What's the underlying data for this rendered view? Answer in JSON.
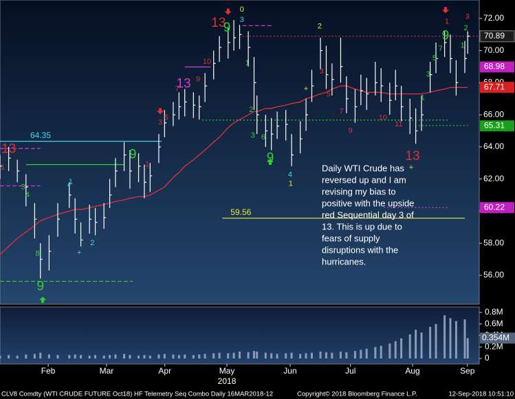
{
  "chart_data": {
    "type": "ohlc",
    "xlim": [
      0,
      166
    ],
    "xticks": [
      {
        "value": 16.7,
        "label": "Feb"
      },
      {
        "value": 36.9,
        "label": "Mar"
      },
      {
        "value": 57.1,
        "label": "Apr"
      },
      {
        "value": 78.6,
        "label": "May"
      },
      {
        "value": 100.5,
        "label": "Jun"
      },
      {
        "value": 121.4,
        "label": "Jul"
      },
      {
        "value": 142.9,
        "label": "Aug"
      },
      {
        "value": 161.9,
        "label": "Sep"
      }
    ],
    "year_label": "2018",
    "ylim": [
      54.2,
      73.15
    ],
    "yticks": [
      {
        "value": 56,
        "label": "56.00"
      },
      {
        "value": 58,
        "label": "58.00"
      },
      {
        "value": 60,
        "label": "60.00"
      },
      {
        "value": 62,
        "label": "62.00"
      },
      {
        "value": 64,
        "label": "64.00"
      },
      {
        "value": 66,
        "label": "66.00"
      },
      {
        "value": 68,
        "label": "68.00"
      },
      {
        "value": 70,
        "label": "70.00"
      },
      {
        "value": 72,
        "label": "72.00"
      }
    ],
    "bar_color": "#ffffff",
    "ma_color": "#e0303c",
    "x": [
      0,
      3,
      6,
      9,
      12,
      14,
      17,
      20,
      24,
      26,
      28,
      31,
      33,
      36,
      38,
      40,
      43,
      45,
      48,
      50,
      52,
      55,
      57,
      60,
      62,
      64,
      67,
      69,
      71,
      74,
      76,
      79,
      81,
      83,
      86,
      88,
      89,
      92,
      94,
      96,
      99,
      101,
      104,
      106,
      108,
      111,
      113,
      115,
      118,
      120,
      123,
      125,
      127,
      130,
      132,
      135,
      137,
      139,
      142,
      144,
      146,
      149,
      151,
      154,
      156,
      158,
      161,
      162
    ],
    "high": [
      63.5,
      64.0,
      63.2,
      62.3,
      60.5,
      58.0,
      58.5,
      60.5,
      61.8,
      60.8,
      59.3,
      60.4,
      60.2,
      60.5,
      62.0,
      63.3,
      64.3,
      63.8,
      63.6,
      62.9,
      63.0,
      64.8,
      66.3,
      66.8,
      67.4,
      67.6,
      67.4,
      67.2,
      68.6,
      70.0,
      70.9,
      71.4,
      71.9,
      71.6,
      71.2,
      69.6,
      67.2,
      66.0,
      65.8,
      66.2,
      66.3,
      64.8,
      65.6,
      67.0,
      68.8,
      70.8,
      70.3,
      69.2,
      70.8,
      68.4,
      67.6,
      68.5,
      68.3,
      69.3,
      68.9,
      68.0,
      68.8,
      67.8,
      67.0,
      66.4,
      67.2,
      69.3,
      70.5,
      71.2,
      71.0,
      69.4,
      70.6,
      71.2
    ],
    "low": [
      62.0,
      62.5,
      61.8,
      60.3,
      58.3,
      55.8,
      56.3,
      58.4,
      60.2,
      58.6,
      57.8,
      58.6,
      58.5,
      58.9,
      60.2,
      61.5,
      62.5,
      61.4,
      61.8,
      60.8,
      61.2,
      63.0,
      64.6,
      65.3,
      65.7,
      65.9,
      65.8,
      65.7,
      66.8,
      68.2,
      69.3,
      69.5,
      70.0,
      70.1,
      69.0,
      66.3,
      64.8,
      64.0,
      63.8,
      64.5,
      64.4,
      62.8,
      63.6,
      65.0,
      66.8,
      68.8,
      67.6,
      67.2,
      68.0,
      66.1,
      65.5,
      66.6,
      66.3,
      67.2,
      66.8,
      66.0,
      66.9,
      65.6,
      64.8,
      64.2,
      65.0,
      67.4,
      68.6,
      69.6,
      68.6,
      67.2,
      68.6,
      69.8
    ],
    "close": [
      62.8,
      63.3,
      62.5,
      61.5,
      59.5,
      57.0,
      57.5,
      59.5,
      61.0,
      59.5,
      58.2,
      59.5,
      59.3,
      59.6,
      61.0,
      62.5,
      63.5,
      62.5,
      62.8,
      61.8,
      62.2,
      64.0,
      65.5,
      66.0,
      66.5,
      66.8,
      66.6,
      66.5,
      67.8,
      69.2,
      70.2,
      70.5,
      70.8,
      71.0,
      70.2,
      68.0,
      66.0,
      65.0,
      64.8,
      65.3,
      65.4,
      63.5,
      64.5,
      66.0,
      67.8,
      70.0,
      68.5,
      68.2,
      69.0,
      67.0,
      66.5,
      67.5,
      67.3,
      68.0,
      67.8,
      66.9,
      67.8,
      66.5,
      65.8,
      65.0,
      66.0,
      68.5,
      69.5,
      70.5,
      69.5,
      68.0,
      69.5,
      70.9
    ],
    "ma": [
      57.3,
      57.8,
      58.3,
      58.7,
      59.1,
      59.4,
      59.6,
      59.8,
      60.0,
      60.1,
      60.1,
      60.2,
      60.3,
      60.4,
      60.5,
      60.6,
      60.7,
      60.8,
      60.9,
      60.9,
      61.0,
      61.3,
      61.5,
      62.1,
      62.4,
      62.8,
      63.2,
      63.5,
      63.8,
      64.3,
      64.6,
      65.2,
      65.5,
      65.7,
      66.0,
      66.2,
      66.2,
      66.4,
      66.4,
      66.5,
      66.6,
      66.7,
      66.8,
      67.0,
      67.1,
      67.3,
      67.4,
      67.6,
      67.8,
      67.8,
      67.6,
      67.5,
      67.4,
      67.4,
      67.4,
      67.3,
      67.3,
      67.3,
      67.3,
      67.3,
      67.3,
      67.4,
      67.5,
      67.6,
      67.7,
      67.7,
      67.7,
      67.71
    ],
    "volume": [
      0.05,
      0.06,
      0.05,
      0.07,
      0.08,
      0.1,
      0.07,
      0.06,
      0.06,
      0.07,
      0.06,
      0.05,
      0.06,
      0.05,
      0.06,
      0.07,
      0.08,
      0.06,
      0.05,
      0.06,
      0.05,
      0.07,
      0.08,
      0.07,
      0.06,
      0.07,
      0.06,
      0.07,
      0.08,
      0.09,
      0.1,
      0.09,
      0.1,
      0.12,
      0.11,
      0.13,
      0.12,
      0.1,
      0.09,
      0.08,
      0.09,
      0.1,
      0.08,
      0.09,
      0.1,
      0.12,
      0.11,
      0.1,
      0.12,
      0.11,
      0.13,
      0.15,
      0.17,
      0.2,
      0.22,
      0.26,
      0.3,
      0.35,
      0.42,
      0.5,
      0.45,
      0.55,
      0.6,
      0.75,
      0.7,
      0.65,
      0.68,
      0.354
    ],
    "volume_color": "#8a9ab8",
    "vylim": [
      -0.095,
      0.895
    ],
    "vyticks": [
      {
        "value": 0,
        "label": "0"
      },
      {
        "value": 0.2,
        "label": "0.2M"
      },
      {
        "value": 0.4,
        "label": "0.4M"
      },
      {
        "value": 0.6,
        "label": "0.6M"
      },
      {
        "value": 0.8,
        "label": "0.8M"
      }
    ],
    "volume_tag": {
      "value": 0.354,
      "label": "0.354M",
      "color": "#56657e"
    },
    "price_tags": [
      {
        "value": 70.89,
        "color": "#1c1c1c"
      },
      {
        "value": 68.98,
        "color": "#c020c0"
      },
      {
        "value": 67.71,
        "color": "#d82020"
      },
      {
        "value": 65.31,
        "color": "#18a018"
      },
      {
        "value": 60.22,
        "color": "#c020c0"
      }
    ],
    "levels": [
      {
        "value": 64.35,
        "from": 0,
        "to": 56,
        "color": "#40d8e8",
        "style": "solid",
        "show_label": true
      },
      {
        "value": 59.56,
        "from": 77,
        "to": 161,
        "color": "#e8e830",
        "style": "solid",
        "show_label": true
      },
      {
        "value": 62.9,
        "from": 9,
        "to": 43,
        "color": "#30d030",
        "style": "solid",
        "show_label": false
      },
      {
        "value": 63.9,
        "from": 0,
        "to": 14,
        "color": "#d040d0",
        "style": "dashed",
        "show_label": false
      },
      {
        "value": 61.57,
        "from": 0,
        "to": 14,
        "color": "#d040d0",
        "style": "dashed",
        "show_label": false
      },
      {
        "value": 55.63,
        "from": 0,
        "to": 46,
        "color": "#30d030",
        "style": "dashed",
        "show_label": false
      },
      {
        "value": 65.67,
        "from": 70,
        "to": 155,
        "color": "#30d030",
        "style": "dotted",
        "show_label": false
      },
      {
        "value": 65.33,
        "from": 145,
        "to": 162,
        "color": "#30d030",
        "style": "dotted",
        "show_label": false
      },
      {
        "value": 70.89,
        "from": 84,
        "to": 166,
        "color": "#e03030",
        "style": "dotted",
        "show_label": false
      },
      {
        "value": 68.98,
        "from": 64,
        "to": 73,
        "color": "#d040d0",
        "style": "solid",
        "show_label": false
      },
      {
        "value": 60.22,
        "from": 133,
        "to": 155,
        "color": "#d040d0",
        "style": "dotted",
        "show_label": false
      },
      {
        "value": 71.55,
        "from": 84,
        "to": 94,
        "color": "#d040d0",
        "style": "dashed",
        "show_label": false
      }
    ],
    "annotations": [
      {
        "text": "13",
        "x": 3,
        "y": 63.85,
        "color": "#e03030",
        "size": "large"
      },
      {
        "text": "1",
        "x": 1,
        "y": 62.7,
        "color": "#e03030",
        "size": "small"
      },
      {
        "text": "3",
        "x": 8,
        "y": 61.5,
        "color": "#30d030",
        "size": "small"
      },
      {
        "text": "4",
        "x": 9.5,
        "y": 61.0,
        "color": "#30d030",
        "size": "small"
      },
      {
        "text": "8",
        "x": 13,
        "y": 57.35,
        "color": "#30d030",
        "size": "small"
      },
      {
        "text": "9",
        "x": 14,
        "y": 55.3,
        "color": "#30d030",
        "size": "large"
      },
      {
        "text": "1",
        "x": 24.5,
        "y": 61.8,
        "color": "#40d8e8",
        "size": "small"
      },
      {
        "text": "+",
        "x": 23.8,
        "y": 61.6,
        "color": "#40d8e8",
        "size": "small"
      },
      {
        "text": "+",
        "x": 27.4,
        "y": 57.4,
        "color": "#40d8e8",
        "size": "small"
      },
      {
        "text": "2",
        "x": 32,
        "y": 58.0,
        "color": "#40d8e8",
        "size": "small"
      },
      {
        "text": "9",
        "x": 46,
        "y": 63.5,
        "color": "#30d030",
        "size": "large"
      },
      {
        "text": "1",
        "x": 51,
        "y": 62.9,
        "color": "#e03030",
        "size": "small"
      },
      {
        "text": "3",
        "x": 55.5,
        "y": 65.5,
        "color": "#e03030",
        "size": "small"
      },
      {
        "text": "5",
        "x": 57.6,
        "y": 65.8,
        "color": "#e03030",
        "size": "small"
      },
      {
        "text": "7",
        "x": 61.4,
        "y": 67.6,
        "color": "#e03030",
        "size": "small"
      },
      {
        "text": "13",
        "x": 63.6,
        "y": 67.9,
        "color": "#d040d0",
        "size": "large"
      },
      {
        "text": "9",
        "x": 68.6,
        "y": 68.2,
        "color": "#e03030",
        "size": "small"
      },
      {
        "text": "10",
        "x": 71.7,
        "y": 69.3,
        "color": "#e03030",
        "size": "small"
      },
      {
        "text": "13",
        "x": 75.7,
        "y": 71.7,
        "color": "#e03030",
        "size": "large"
      },
      {
        "text": "9",
        "x": 78.6,
        "y": 71.4,
        "color": "#30d030",
        "size": "large"
      },
      {
        "text": "0",
        "x": 83.8,
        "y": 72.55,
        "color": "#e8e830",
        "size": "small"
      },
      {
        "text": "3",
        "x": 83.8,
        "y": 71.9,
        "color": "#40d8e8",
        "size": "small"
      },
      {
        "text": "1",
        "x": 85.7,
        "y": 69.2,
        "color": "#30d030",
        "size": "small"
      },
      {
        "text": "2",
        "x": 87,
        "y": 66.3,
        "color": "#30d030",
        "size": "small"
      },
      {
        "text": "3",
        "x": 87.6,
        "y": 64.7,
        "color": "#30d030",
        "size": "small"
      },
      {
        "text": "6",
        "x": 91.2,
        "y": 64.6,
        "color": "#30d030",
        "size": "small"
      },
      {
        "text": "9",
        "x": 93.6,
        "y": 63.3,
        "color": "#30d030",
        "size": "large"
      },
      {
        "text": "4",
        "x": 100.5,
        "y": 62.25,
        "color": "#40d8e8",
        "size": "small"
      },
      {
        "text": "1",
        "x": 100.7,
        "y": 61.7,
        "color": "#e8e830",
        "size": "small"
      },
      {
        "text": "+",
        "x": 106,
        "y": 67.6,
        "color": "#e8e830",
        "size": "small"
      },
      {
        "text": "2",
        "x": 110.7,
        "y": 71.5,
        "color": "#e8e830",
        "size": "small"
      },
      {
        "text": "3",
        "x": 111.4,
        "y": 68.7,
        "color": "#e03030",
        "size": "small"
      },
      {
        "text": "5",
        "x": 113.8,
        "y": 67.26,
        "color": "#e03030",
        "size": "small"
      },
      {
        "text": "7",
        "x": 118.3,
        "y": 66.2,
        "color": "#e03030",
        "size": "small"
      },
      {
        "text": "9",
        "x": 121.4,
        "y": 65.0,
        "color": "#e03030",
        "size": "small"
      },
      {
        "text": "10",
        "x": 132.6,
        "y": 65.8,
        "color": "#e03030",
        "size": "small"
      },
      {
        "text": "11",
        "x": 138.1,
        "y": 65.4,
        "color": "#e03030",
        "size": "small"
      },
      {
        "text": "13",
        "x": 142.9,
        "y": 63.4,
        "color": "#e03030",
        "size": "large"
      },
      {
        "text": "+",
        "x": 142.4,
        "y": 62.7,
        "color": "#e8e830",
        "size": "small"
      },
      {
        "text": "1",
        "x": 146.4,
        "y": 67.05,
        "color": "#30d030",
        "size": "small"
      },
      {
        "text": "3",
        "x": 148.3,
        "y": 68.5,
        "color": "#30d030",
        "size": "small"
      },
      {
        "text": "5",
        "x": 150.5,
        "y": 69.5,
        "color": "#30d030",
        "size": "small"
      },
      {
        "text": "7",
        "x": 152.6,
        "y": 70.1,
        "color": "#30d030",
        "size": "small"
      },
      {
        "text": "9",
        "x": 154.3,
        "y": 70.9,
        "color": "#30d030",
        "size": "large"
      },
      {
        "text": "1",
        "x": 154.8,
        "y": 71.8,
        "color": "#e03030",
        "size": "small"
      },
      {
        "text": "3",
        "x": 161.9,
        "y": 72.1,
        "color": "#e03030",
        "size": "small"
      },
      {
        "text": "2",
        "x": 161.4,
        "y": 71.4,
        "color": "#30d030",
        "size": "small"
      },
      {
        "text": "1",
        "x": 160.2,
        "y": 70.3,
        "color": "#30d030",
        "size": "small"
      }
    ],
    "arrows": [
      {
        "x": 55.5,
        "y": 66.2,
        "dir": "down",
        "color": "#e03030"
      },
      {
        "x": 79,
        "y": 72.4,
        "dir": "down",
        "color": "#e03030"
      },
      {
        "x": 154.3,
        "y": 72.5,
        "dir": "down",
        "color": "#e03030"
      },
      {
        "x": 14.8,
        "y": 54.5,
        "dir": "up",
        "color": "#30d030"
      },
      {
        "x": 93.6,
        "y": 63.1,
        "dir": "up",
        "color": "#30d030"
      }
    ],
    "comment_lines": [
      "Daily WTI Crude has",
      "reversed up and I am",
      "revising my bias to",
      "positive with the upside",
      "red Sequential day 3 of",
      "13.  This is up due to",
      "fears of supply",
      "disruptions with the",
      "hurricanes."
    ],
    "footer": {
      "left": "CLV8 Comdty (WTI CRUDE FUTURE  Oct18) HF Telemetry Seq Combo  Daily 16MAR2018-12",
      "center": "Copyright© 2018 Bloomberg Finance L.P.",
      "right": "12-Sep-2018 10:51:10"
    }
  }
}
